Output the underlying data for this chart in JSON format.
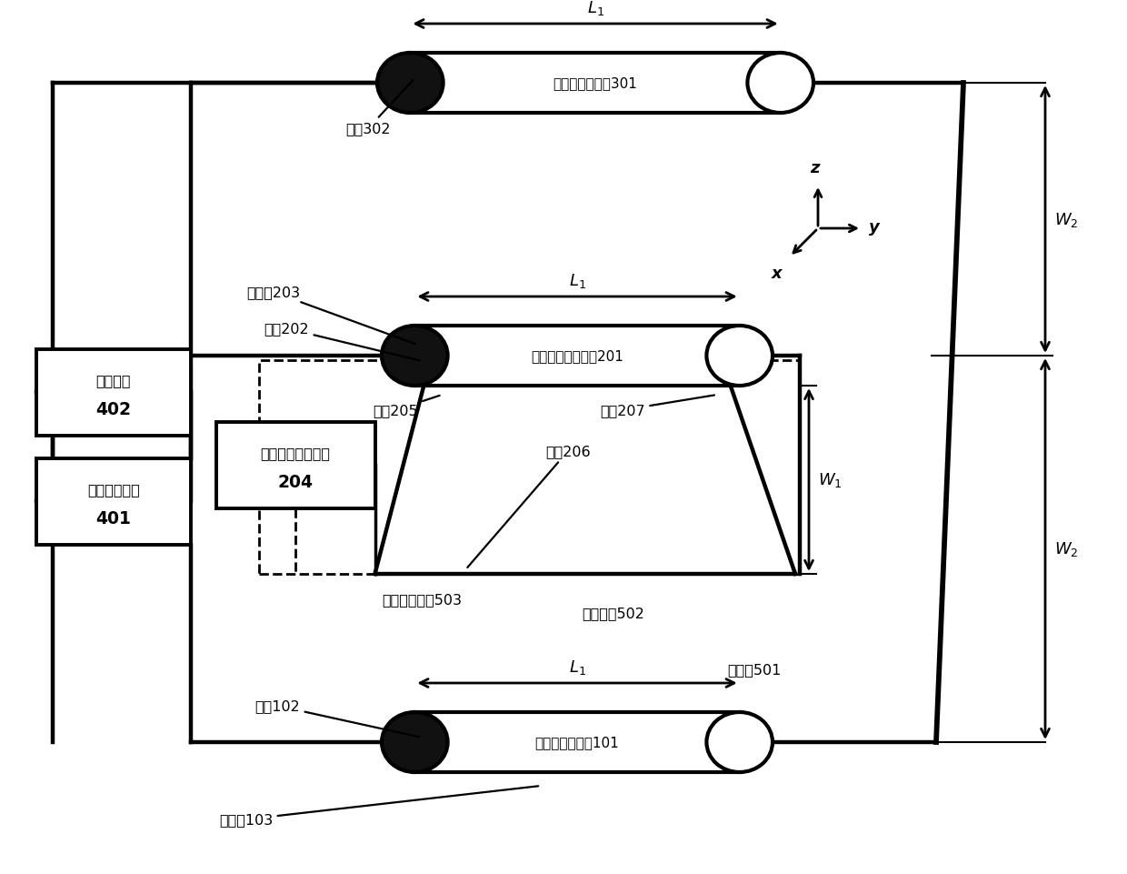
{
  "bg_color": "#ffffff",
  "line_color": "#000000",
  "labels": {
    "cable301": "主回路受试电缪301",
    "cable201": "辅助回路受试电缪201",
    "cable101": "主回路受试电缪101",
    "load402_l1": "安全负载",
    "load402_l2": "402",
    "power401_l1": "交流变频电源",
    "power401_l2": "401",
    "circuit204_l1": "屏蔽系数测试回路",
    "circuit204_l2": "204",
    "xinxian302": "芚线302",
    "shielding203": "屏蔽层203",
    "xinxian202": "芚线202",
    "copper205": "铜线205",
    "copper206": "铜线206",
    "copper207": "铜线207",
    "ground503": "接地阻抗回路503",
    "aux502": "辅助回路502",
    "main501": "主回路501",
    "xinxian102": "芚线102",
    "shielding103": "屏蔽层103",
    "L1": "$L_1$",
    "W1": "$W_1$",
    "W2": "$W_2$",
    "z_label": "z",
    "y_label": "y",
    "x_label": "x"
  }
}
